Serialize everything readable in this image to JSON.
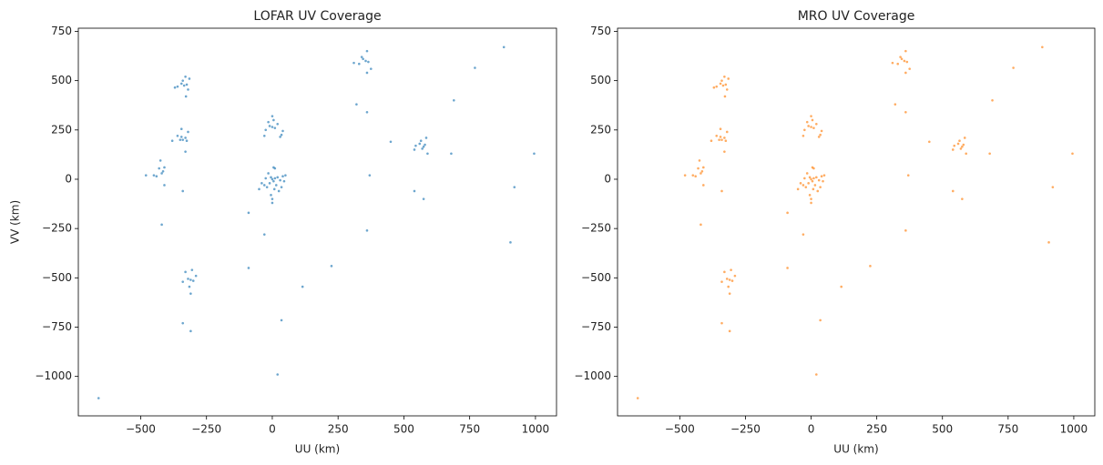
{
  "chart_data": [
    {
      "type": "scatter",
      "title": "LOFAR UV Coverage",
      "xlabel": "UU (km)",
      "ylabel": "VV (km)",
      "color": "#1f77b4",
      "x": [
        -335,
        -325,
        -340,
        -330,
        -360,
        -320,
        -345,
        -328,
        -370,
        -315,
        -340,
        -330,
        -345,
        -325,
        -380,
        -360,
        -345,
        -320,
        -330,
        -350,
        -420,
        -415,
        -430,
        -450,
        -410,
        -425,
        -410,
        -480,
        -440,
        -310,
        -320,
        -300,
        -305,
        -340,
        -290,
        -310,
        -330,
        -315,
        0,
        5,
        -5,
        10,
        -10,
        15,
        20,
        40,
        50,
        -20,
        -30,
        5,
        10,
        -5,
        0,
        25,
        -40,
        30,
        -15,
        8,
        -50,
        45,
        35,
        -25,
        0,
        0,
        -10,
        10,
        5,
        -25,
        -15,
        20,
        35,
        30,
        40,
        -30,
        0,
        355,
        345,
        365,
        340,
        360,
        330,
        310,
        375,
        360,
        575,
        570,
        580,
        560,
        540,
        590,
        585,
        565,
        545,
        -660,
        -420,
        -340,
        -90,
        -30,
        -90,
        115,
        225,
        35,
        20,
        -340,
        -310,
        320,
        360,
        450,
        370,
        360,
        540,
        575,
        680,
        690,
        770,
        880,
        995,
        920,
        905
      ],
      "values": [
        475,
        480,
        500,
        520,
        470,
        455,
        485,
        420,
        465,
        510,
        200,
        210,
        215,
        195,
        195,
        220,
        255,
        240,
        140,
        200,
        30,
        40,
        55,
        20,
        60,
        95,
        -30,
        20,
        15,
        -510,
        -505,
        -515,
        -460,
        -520,
        -490,
        -580,
        -470,
        -545,
        0,
        -10,
        10,
        5,
        -20,
        -30,
        10,
        15,
        20,
        -40,
        -30,
        60,
        55,
        -80,
        -100,
        -60,
        -20,
        -5,
        30,
        -50,
        -50,
        -10,
        -40,
        5,
        -120,
        265,
        270,
        260,
        300,
        250,
        290,
        280,
        225,
        215,
        245,
        220,
        320,
        600,
        610,
        595,
        620,
        650,
        585,
        590,
        560,
        540,
        165,
        155,
        175,
        180,
        150,
        130,
        210,
        195,
        170,
        -1110,
        -230,
        -60,
        -170,
        -280,
        -450,
        -545,
        -440,
        -715,
        -990,
        -730,
        -770,
        380,
        340,
        190,
        20,
        -260,
        -60,
        -100,
        130,
        400,
        565,
        670,
        130,
        -40,
        -320
      ],
      "xlim": [
        -737,
        1080
      ],
      "ylim": [
        -1200,
        766
      ],
      "xticks": [
        {
          "value": -500,
          "label": "−500"
        },
        {
          "value": -250,
          "label": "−250"
        },
        0,
        250,
        500,
        750,
        1000
      ],
      "yticks": [
        {
          "value": -1000,
          "label": "−1000"
        },
        {
          "value": -750,
          "label": "−750"
        },
        {
          "value": -500,
          "label": "−500"
        },
        {
          "value": -250,
          "label": "−250"
        },
        0,
        250,
        500,
        750
      ]
    },
    {
      "type": "scatter",
      "title": "MRO UV Coverage",
      "xlabel": "UU (km)",
      "color": "#ff7f0e",
      "x": [
        -335,
        -325,
        -340,
        -330,
        -360,
        -320,
        -345,
        -328,
        -370,
        -315,
        -340,
        -330,
        -345,
        -325,
        -380,
        -360,
        -345,
        -320,
        -330,
        -350,
        -420,
        -415,
        -430,
        -450,
        -410,
        -425,
        -410,
        -480,
        -440,
        -310,
        -320,
        -300,
        -305,
        -340,
        -290,
        -310,
        -330,
        -315,
        0,
        5,
        -5,
        10,
        -10,
        15,
        20,
        40,
        50,
        -20,
        -30,
        5,
        10,
        -5,
        0,
        25,
        -40,
        30,
        -15,
        8,
        -50,
        45,
        35,
        -25,
        0,
        0,
        -10,
        10,
        5,
        -25,
        -15,
        20,
        35,
        30,
        40,
        -30,
        0,
        355,
        345,
        365,
        340,
        360,
        330,
        310,
        375,
        360,
        575,
        570,
        580,
        560,
        540,
        590,
        585,
        565,
        545,
        -660,
        -420,
        -340,
        -90,
        -30,
        -90,
        115,
        225,
        35,
        20,
        -340,
        -310,
        320,
        360,
        450,
        370,
        360,
        540,
        575,
        680,
        690,
        770,
        880,
        995,
        920,
        905
      ],
      "values": [
        475,
        480,
        500,
        520,
        470,
        455,
        485,
        420,
        465,
        510,
        200,
        210,
        215,
        195,
        195,
        220,
        255,
        240,
        140,
        200,
        30,
        40,
        55,
        20,
        60,
        95,
        -30,
        20,
        15,
        -510,
        -505,
        -515,
        -460,
        -520,
        -490,
        -580,
        -470,
        -545,
        0,
        -10,
        10,
        5,
        -20,
        -30,
        10,
        15,
        20,
        -40,
        -30,
        60,
        55,
        -80,
        -100,
        -60,
        -20,
        -5,
        30,
        -50,
        -50,
        -10,
        -40,
        5,
        -120,
        265,
        270,
        260,
        300,
        250,
        290,
        280,
        225,
        215,
        245,
        220,
        320,
        600,
        610,
        595,
        620,
        650,
        585,
        590,
        560,
        540,
        165,
        155,
        175,
        180,
        150,
        130,
        210,
        195,
        170,
        -1110,
        -230,
        -60,
        -170,
        -280,
        -450,
        -545,
        -440,
        -715,
        -990,
        -730,
        -770,
        380,
        340,
        190,
        20,
        -260,
        -60,
        -100,
        130,
        400,
        565,
        670,
        130,
        -40,
        -320
      ],
      "xlim": [
        -737,
        1080
      ],
      "ylim": [
        -1200,
        766
      ],
      "xticks": [
        {
          "value": -500,
          "label": "−500"
        },
        {
          "value": -250,
          "label": "−250"
        },
        0,
        250,
        500,
        750,
        1000
      ],
      "yticks": [
        {
          "value": -1000,
          "label": "−1000"
        },
        {
          "value": -750,
          "label": "−750"
        },
        {
          "value": -500,
          "label": "−500"
        },
        {
          "value": -250,
          "label": "−250"
        },
        0,
        250,
        500,
        750
      ]
    }
  ]
}
